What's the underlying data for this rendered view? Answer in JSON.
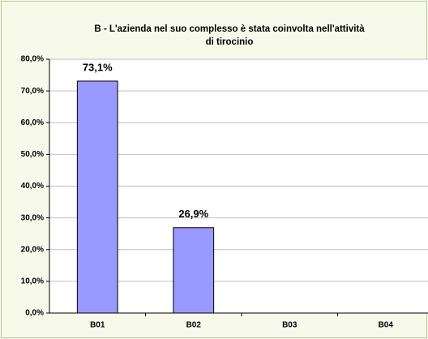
{
  "chart_data": {
    "type": "bar",
    "title": [
      "B - L'azienda nel suo complesso è stata coinvolta nell'attività",
      "di tirocinio"
    ],
    "categories": [
      "B01",
      "B02",
      "B03",
      "B04"
    ],
    "values": [
      73.1,
      26.9,
      null,
      null
    ],
    "value_labels": [
      "73,1%",
      "26,9%",
      null,
      null
    ],
    "color": "#9999ff",
    "ylim": [
      0,
      80
    ],
    "yticks": [
      {
        "value": 0,
        "label": "0,0%"
      },
      {
        "value": 10,
        "label": "10,0%"
      },
      {
        "value": 20,
        "label": "20,0%"
      },
      {
        "value": 30,
        "label": "30,0%"
      },
      {
        "value": 40,
        "label": "40,0%"
      },
      {
        "value": 50,
        "label": "50,0%"
      },
      {
        "value": 60,
        "label": "60,0%"
      },
      {
        "value": 70,
        "label": "70,0%"
      },
      {
        "value": 80,
        "label": "80,0%"
      }
    ],
    "grid": true
  }
}
